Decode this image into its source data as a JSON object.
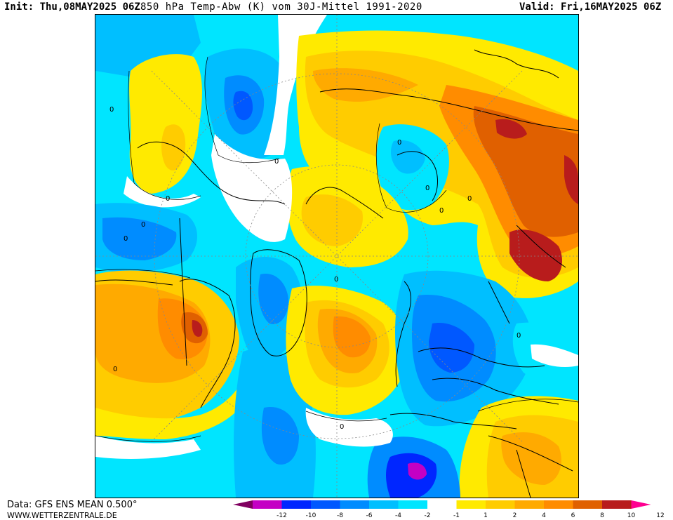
{
  "header": {
    "init": "Init: Thu,08MAY2025 06Z",
    "title": "850 hPa Temp-Abw (K) vom 30J-Mittel 1991-2020",
    "valid": "Valid: Fri,16MAY2025 06Z"
  },
  "footer": {
    "data_source": "Data: GFS ENS MEAN 0.500°",
    "website": "WWW.WETTERZENTRALE.DE"
  },
  "legend": {
    "colors": [
      "#800060",
      "#c400c4",
      "#0026ff",
      "#0058ff",
      "#008cff",
      "#00bfff",
      "#00e5ff",
      "#ffffff",
      "#ffea00",
      "#ffcc00",
      "#ffaa00",
      "#ff8c00",
      "#e06000",
      "#b81c1c",
      "#ff0090"
    ],
    "tick_labels": [
      "-12",
      "-10",
      "-8",
      "-6",
      "-4",
      "-2",
      "-1",
      "1",
      "2",
      "4",
      "6",
      "8",
      "10",
      "12"
    ]
  },
  "map": {
    "contour_labels": [
      "0",
      "0",
      "0",
      "0",
      "0",
      "0",
      "0",
      "0",
      "0",
      "0",
      "0",
      "0",
      "0"
    ]
  }
}
